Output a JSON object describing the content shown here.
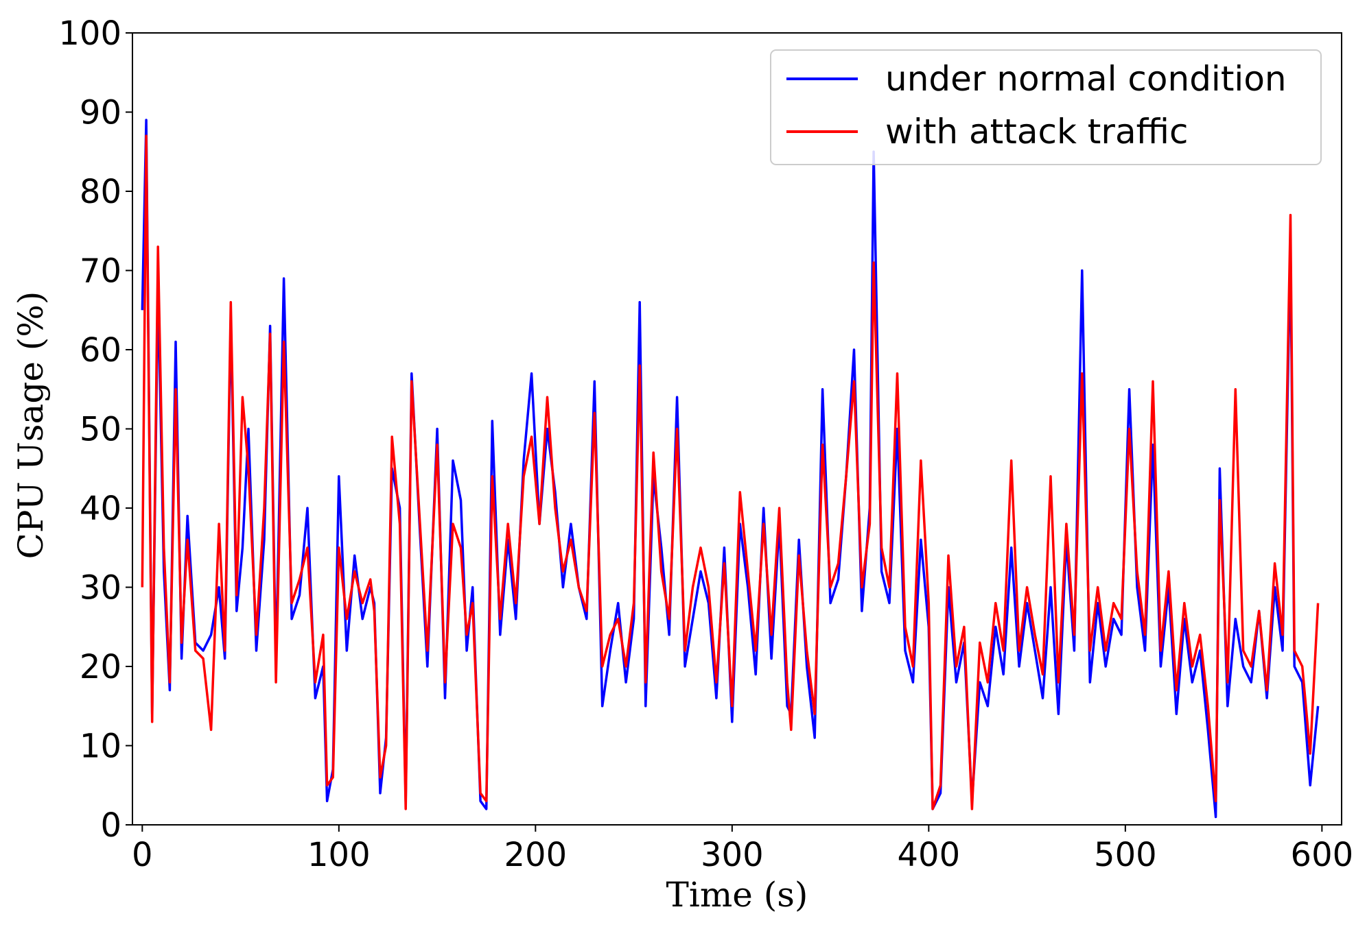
{
  "chart_data": {
    "type": "line",
    "title": "",
    "xlabel": "Time (s)",
    "ylabel": "CPU Usage (%)",
    "xlim": [
      -5,
      610
    ],
    "ylim": [
      0,
      100
    ],
    "xticks": [
      0,
      100,
      200,
      300,
      400,
      500,
      600
    ],
    "yticks": [
      0,
      10,
      20,
      30,
      40,
      50,
      60,
      70,
      80,
      90,
      100
    ],
    "legend": "top-right",
    "grid": false,
    "series": [
      {
        "name": "under normal condition",
        "color": "#0000ff",
        "x": [
          0,
          2,
          5,
          8,
          11,
          14,
          17,
          20,
          23,
          27,
          31,
          35,
          39,
          42,
          45,
          48,
          51,
          54,
          58,
          62,
          65,
          68,
          72,
          76,
          80,
          84,
          88,
          92,
          94,
          97,
          100,
          104,
          108,
          112,
          116,
          118,
          121,
          124,
          127,
          131,
          134,
          137,
          141,
          145,
          150,
          154,
          158,
          162,
          165,
          168,
          172,
          175,
          178,
          182,
          186,
          190,
          194,
          198,
          202,
          206,
          210,
          214,
          218,
          222,
          226,
          230,
          234,
          238,
          242,
          246,
          250,
          253,
          256,
          260,
          264,
          268,
          272,
          276,
          280,
          284,
          288,
          292,
          296,
          300,
          304,
          308,
          312,
          316,
          320,
          324,
          328,
          330,
          334,
          338,
          342,
          346,
          350,
          354,
          358,
          362,
          366,
          370,
          372,
          376,
          380,
          384,
          388,
          392,
          396,
          400,
          402,
          406,
          410,
          414,
          418,
          422,
          426,
          430,
          434,
          438,
          442,
          446,
          450,
          454,
          458,
          462,
          466,
          470,
          474,
          478,
          482,
          486,
          490,
          494,
          498,
          502,
          506,
          510,
          514,
          518,
          522,
          526,
          530,
          534,
          538,
          542,
          546,
          548,
          552,
          556,
          560,
          564,
          568,
          572,
          576,
          580,
          584,
          586,
          590,
          594,
          598
        ],
        "values": [
          65,
          89,
          14,
          68,
          32,
          17,
          61,
          21,
          39,
          23,
          22,
          24,
          30,
          21,
          64,
          27,
          35,
          50,
          22,
          36,
          63,
          20,
          69,
          26,
          29,
          40,
          16,
          20,
          3,
          7,
          44,
          22,
          34,
          26,
          30,
          28,
          4,
          11,
          45,
          40,
          3,
          57,
          38,
          20,
          50,
          16,
          46,
          41,
          22,
          30,
          3,
          2,
          51,
          24,
          36,
          26,
          46,
          57,
          38,
          50,
          42,
          30,
          38,
          30,
          26,
          56,
          15,
          22,
          28,
          18,
          26,
          66,
          15,
          44,
          35,
          24,
          54,
          20,
          26,
          32,
          28,
          16,
          35,
          13,
          38,
          30,
          19,
          40,
          21,
          38,
          15,
          14,
          36,
          20,
          11,
          55,
          28,
          31,
          44,
          60,
          27,
          40,
          85,
          32,
          28,
          50,
          22,
          18,
          36,
          25,
          2,
          4,
          30,
          18,
          23,
          3,
          18,
          15,
          25,
          19,
          35,
          20,
          28,
          22,
          16,
          30,
          14,
          36,
          22,
          70,
          18,
          28,
          20,
          26,
          24,
          55,
          30,
          22,
          48,
          20,
          30,
          14,
          26,
          18,
          22,
          12,
          1,
          45,
          15,
          26,
          20,
          18,
          27,
          16,
          30,
          22,
          73,
          20,
          18,
          5,
          15
        ]
      },
      {
        "name": "with attack traffic",
        "color": "#ff0000",
        "x": [
          0,
          2,
          5,
          8,
          11,
          14,
          17,
          20,
          23,
          27,
          31,
          35,
          39,
          42,
          45,
          48,
          51,
          54,
          58,
          62,
          65,
          68,
          72,
          76,
          80,
          84,
          88,
          92,
          94,
          97,
          100,
          104,
          108,
          112,
          116,
          118,
          121,
          124,
          127,
          131,
          134,
          137,
          141,
          145,
          150,
          154,
          158,
          162,
          165,
          168,
          172,
          175,
          178,
          182,
          186,
          190,
          194,
          198,
          202,
          206,
          210,
          214,
          218,
          222,
          226,
          230,
          234,
          238,
          242,
          246,
          250,
          253,
          256,
          260,
          264,
          268,
          272,
          276,
          280,
          284,
          288,
          292,
          296,
          300,
          304,
          308,
          312,
          316,
          320,
          324,
          328,
          330,
          334,
          338,
          342,
          346,
          350,
          354,
          358,
          362,
          366,
          370,
          372,
          376,
          380,
          384,
          388,
          392,
          396,
          400,
          402,
          406,
          410,
          414,
          418,
          422,
          426,
          430,
          434,
          438,
          442,
          446,
          450,
          454,
          458,
          462,
          466,
          470,
          474,
          478,
          482,
          486,
          490,
          494,
          498,
          502,
          506,
          510,
          514,
          518,
          522,
          526,
          530,
          534,
          538,
          542,
          546,
          548,
          552,
          556,
          560,
          564,
          568,
          572,
          576,
          580,
          584,
          586,
          590,
          594,
          598
        ],
        "values": [
          30,
          87,
          13,
          73,
          35,
          18,
          55,
          23,
          36,
          22,
          21,
          12,
          38,
          22,
          66,
          29,
          54,
          45,
          24,
          40,
          62,
          18,
          61,
          28,
          31,
          35,
          18,
          24,
          5,
          6,
          35,
          26,
          32,
          28,
          31,
          27,
          6,
          10,
          49,
          38,
          2,
          56,
          39,
          22,
          48,
          18,
          38,
          35,
          24,
          28,
          4,
          3,
          44,
          26,
          38,
          28,
          44,
          49,
          38,
          54,
          40,
          32,
          36,
          30,
          27,
          52,
          20,
          24,
          26,
          20,
          28,
          58,
          18,
          47,
          32,
          26,
          50,
          22,
          30,
          35,
          30,
          18,
          33,
          15,
          42,
          32,
          22,
          38,
          24,
          40,
          18,
          12,
          34,
          22,
          14,
          48,
          30,
          33,
          44,
          56,
          30,
          38,
          71,
          35,
          30,
          57,
          25,
          20,
          46,
          28,
          2,
          5,
          34,
          20,
          25,
          2,
          23,
          18,
          28,
          22,
          46,
          22,
          30,
          24,
          19,
          44,
          18,
          38,
          24,
          57,
          22,
          30,
          22,
          28,
          26,
          50,
          32,
          24,
          56,
          22,
          32,
          17,
          28,
          20,
          24,
          15,
          3,
          41,
          18,
          55,
          22,
          20,
          27,
          17,
          33,
          24,
          77,
          22,
          20,
          9,
          28
        ]
      }
    ]
  }
}
